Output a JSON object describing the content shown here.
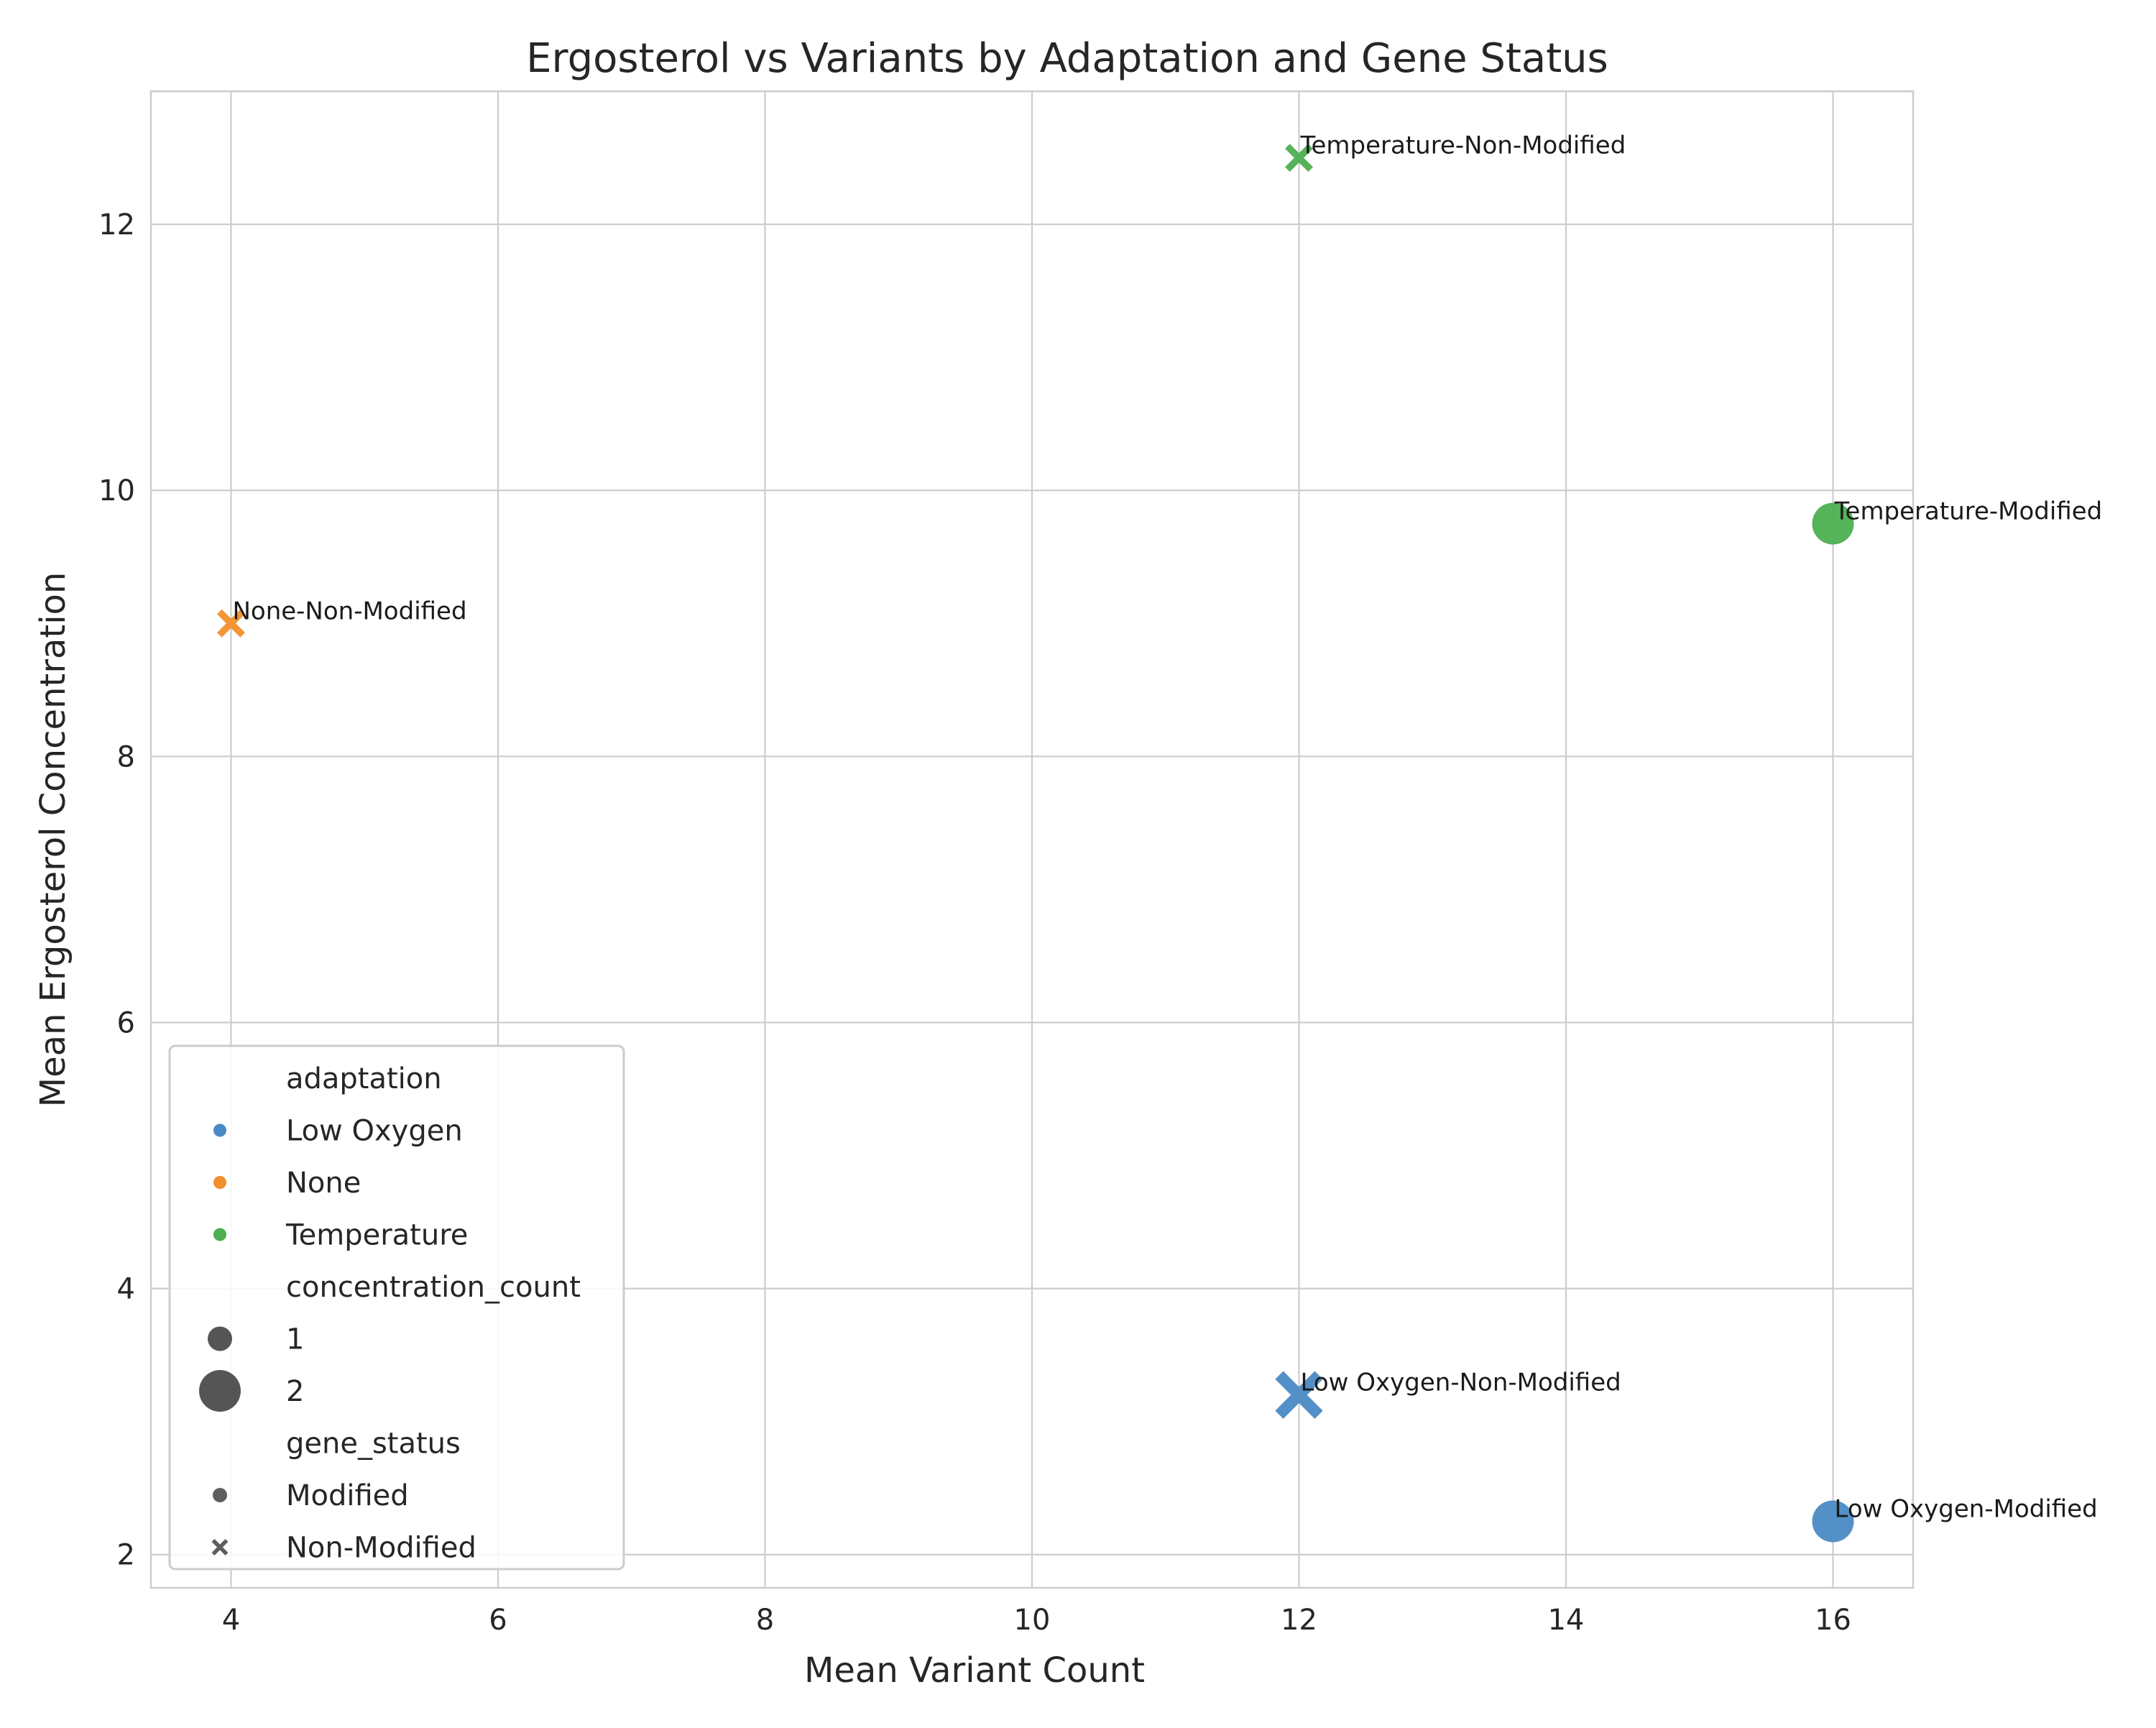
{
  "chart_data": {
    "type": "scatter",
    "title": "Ergosterol vs Variants by Adaptation and Gene Status",
    "xlabel": "Mean Variant Count",
    "ylabel": "Mean Ergosterol Concentration",
    "xlim": [
      3.4,
      16.6
    ],
    "ylim": [
      1.75,
      13.0
    ],
    "xticks": [
      "4",
      "6",
      "8",
      "10",
      "12",
      "14",
      "16"
    ],
    "yticks": [
      "2",
      "4",
      "6",
      "8",
      "10",
      "12"
    ],
    "grid": true,
    "legend_position": "bottom-left",
    "colors": {
      "Low Oxygen": "#4a8ac4",
      "None": "#f28e2b",
      "Temperature": "#4caf50",
      "neutral": "#555555"
    },
    "points": [
      {
        "x": 16,
        "y": 2.25,
        "adaptation": "Low Oxygen",
        "gene_status": "Modified",
        "concentration_count": 2,
        "label": "Low Oxygen-Modified"
      },
      {
        "x": 12,
        "y": 3.2,
        "adaptation": "Low Oxygen",
        "gene_status": "Non-Modified",
        "concentration_count": 2,
        "label": "Low Oxygen-Non-Modified"
      },
      {
        "x": 4,
        "y": 9.0,
        "adaptation": "None",
        "gene_status": "Non-Modified",
        "concentration_count": 1,
        "label": "None-Non-Modified"
      },
      {
        "x": 16,
        "y": 9.75,
        "adaptation": "Temperature",
        "gene_status": "Modified",
        "concentration_count": 2,
        "label": "Temperature-Modified"
      },
      {
        "x": 12,
        "y": 12.5,
        "adaptation": "Temperature",
        "gene_status": "Non-Modified",
        "concentration_count": 1,
        "label": "Temperature-Non-Modified"
      }
    ],
    "legend": {
      "hue_title": "adaptation",
      "hue_items": [
        "Low Oxygen",
        "None",
        "Temperature"
      ],
      "size_title": "concentration_count",
      "size_items": [
        "1",
        "2"
      ],
      "style_title": "gene_status",
      "style_items": [
        {
          "label": "Modified",
          "marker": "circle"
        },
        {
          "label": "Non-Modified",
          "marker": "x"
        }
      ]
    }
  }
}
